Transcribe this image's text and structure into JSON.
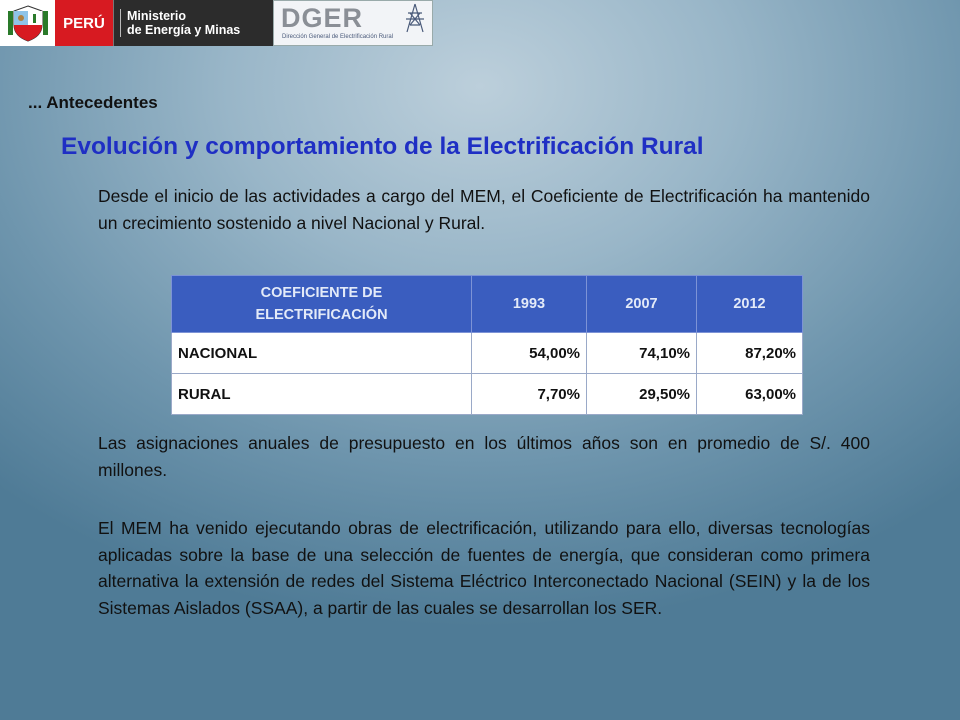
{
  "header": {
    "peru": "PERÚ",
    "ministry_line1": "Ministerio",
    "ministry_line2": "de Energía y Minas",
    "dger_logo": "DGER",
    "dger_subtitle": "Dirección General de Electrificación Rural"
  },
  "section_label": "... Antecedentes",
  "title": "Evolución y comportamiento de la Electrificación Rural",
  "paragraph1": "Desde el inicio de las actividades a cargo del MEM, el Coeficiente de Electrificación ha mantenido un crecimiento sostenido a nivel Nacional y Rural.",
  "table": {
    "header_line1": "COEFICIENTE DE",
    "header_line2": "ELECTRIFICACIÓN",
    "years": [
      "1993",
      "2007",
      "2012"
    ],
    "rows": [
      {
        "label": "NACIONAL",
        "values": [
          "54,00%",
          "74,10%",
          "87,20%"
        ]
      },
      {
        "label": "RURAL",
        "values": [
          "7,70%",
          "29,50%",
          "63,00%"
        ]
      }
    ]
  },
  "paragraph2": "Las asignaciones anuales de presupuesto en los últimos años son en promedio de  S/. 400 millones.",
  "paragraph3": "El MEM ha venido ejecutando obras de electrificación, utilizando para ello, diversas tecnologías aplicadas sobre la base de una selección de fuentes de energía, que consideran como primera alternativa la extensión de redes del Sistema Eléctrico Interconectado Nacional (SEIN) y la de los Sistemas Aislados (SSAA), a partir de las cuales se desarrollan los SER.",
  "colors": {
    "title": "#1f2fc4",
    "table_header": "#3a5dbf",
    "peru_red": "#d71a21"
  }
}
